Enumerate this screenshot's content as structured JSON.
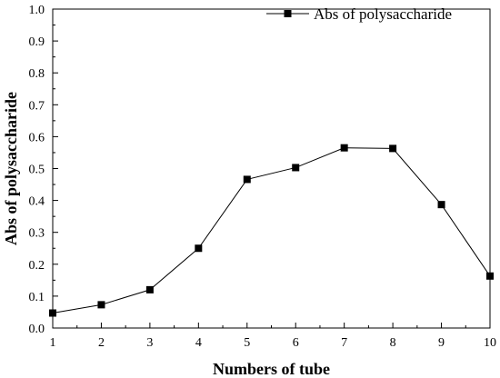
{
  "chart_data": {
    "type": "line",
    "title": "",
    "xlabel": "Numbers of tube",
    "ylabel": "Abs of polysaccharide",
    "xlim": [
      1,
      10
    ],
    "ylim": [
      0.0,
      1.0
    ],
    "x_ticks": [
      "1",
      "2",
      "3",
      "4",
      "5",
      "6",
      "7",
      "8",
      "9",
      "10"
    ],
    "y_ticks": [
      "0.0",
      "0.1",
      "0.2",
      "0.3",
      "0.4",
      "0.5",
      "0.6",
      "0.7",
      "0.8",
      "0.9",
      "1.0"
    ],
    "grid": false,
    "legend_position": "top-right",
    "series": [
      {
        "name": "Abs of polysaccharide",
        "marker": "square",
        "color": "#000000",
        "x": [
          1,
          2,
          3,
          4,
          5,
          6,
          7,
          8,
          9,
          10
        ],
        "y": [
          0.047,
          0.073,
          0.12,
          0.25,
          0.466,
          0.503,
          0.565,
          0.563,
          0.387,
          0.163
        ]
      }
    ]
  }
}
